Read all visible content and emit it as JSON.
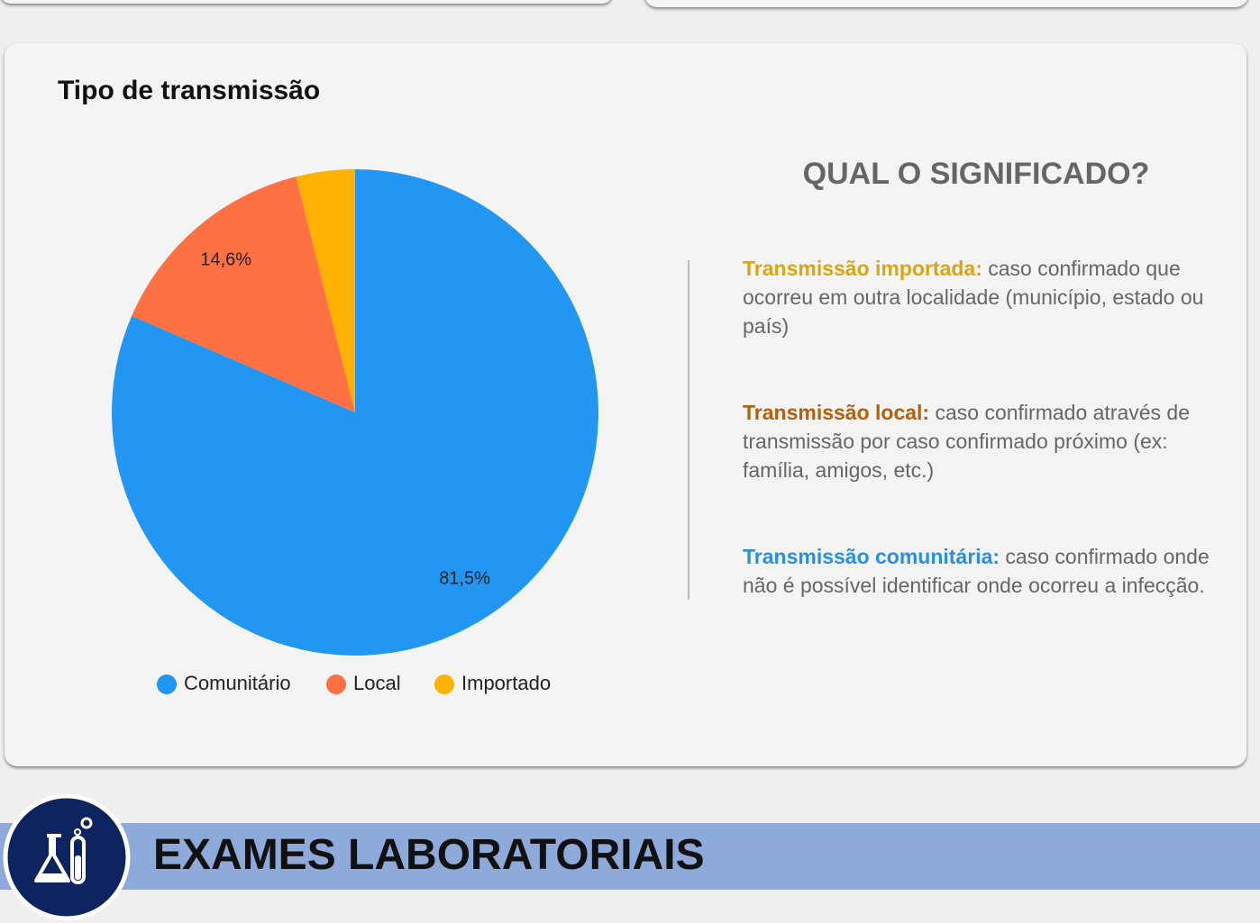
{
  "chart_data": {
    "type": "pie",
    "title": "Tipo de transmissão",
    "categories": [
      "Comunitário",
      "Local",
      "Importado"
    ],
    "values": [
      81.5,
      14.6,
      3.9
    ],
    "value_labels": [
      "81,5%",
      "14,6%",
      null
    ],
    "colors": [
      "#2196f3",
      "#ff7043",
      "#ffb300"
    ]
  },
  "explanation": {
    "heading": "QUAL O SIGNIFICADO?",
    "items": [
      {
        "term": "Transmissão importada:",
        "color": "#d9a514",
        "text": " caso confirmado que ocorreu em outra localidade (município, estado ou país)"
      },
      {
        "term": "Transmissão local:",
        "color": "#b5600c",
        "text": " caso confirmado através de transmissão por caso confirmado próximo (ex: família, amigos, etc.)"
      },
      {
        "term": "Transmissão comunitária:",
        "color": "#2b8fe0",
        "text": " caso confirmado onde não é possível identificar onde ocorreu a infecção."
      }
    ]
  },
  "section": {
    "title": "EXAMES LABORATORIAIS"
  }
}
